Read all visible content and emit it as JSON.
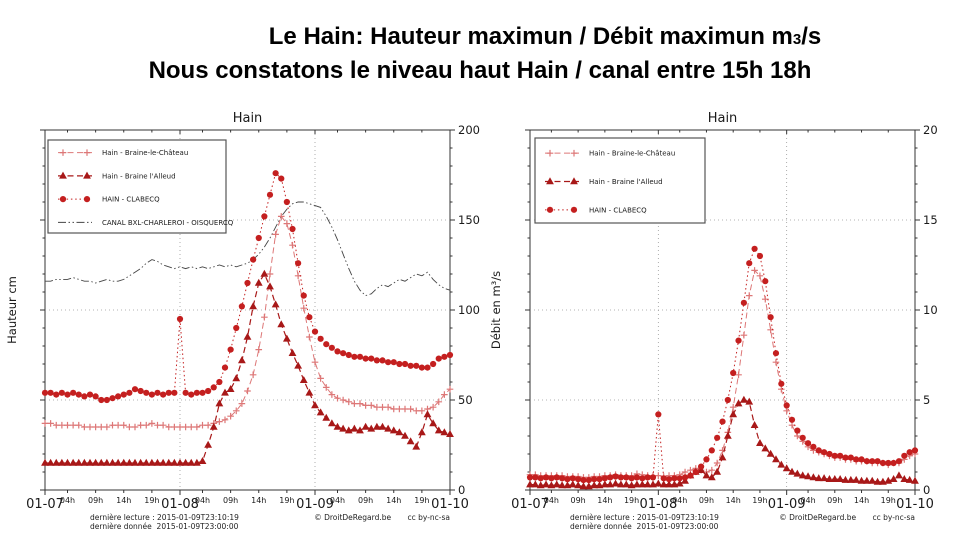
{
  "title": {
    "line1_main": "Le Hain: Hauteur maximun  / Débit maximun m",
    "line1_sub": "3",
    "line1_tail": "/s",
    "line2": "Nous constatons le niveau haut Hain / canal entre 15h 18h"
  },
  "footers": {
    "reading_line": "dernière lecture : 2015-01-09T23:10:19",
    "data_line": "dernière donnée  2015-01-09T23:00:00",
    "copyright": "© DroitDeRegard.be",
    "license": "cc by-nc-sa"
  },
  "chart_data": [
    {
      "type": "line",
      "title": "Hain",
      "ylabel": "Hauteur cm",
      "ylim": [
        0,
        200
      ],
      "yticks": [
        0,
        50,
        100,
        150,
        200
      ],
      "ytick_minor_step": 10,
      "grid_y": [
        50,
        100,
        150
      ],
      "grid_x_hours": [
        24,
        48
      ],
      "x_total_hours": 72,
      "xticks_major": [
        {
          "h": 0,
          "label": "01-07"
        },
        {
          "h": 24,
          "label": "01-08"
        },
        {
          "h": 48,
          "label": "01-09"
        },
        {
          "h": 72,
          "label": "01-10"
        }
      ],
      "xticks_minor": [
        {
          "h": 4,
          "label": "04h"
        },
        {
          "h": 9,
          "label": "09h"
        },
        {
          "h": 14,
          "label": "14h"
        },
        {
          "h": 19,
          "label": "19h"
        },
        {
          "h": 28,
          "label": "04h"
        },
        {
          "h": 33,
          "label": "09h"
        },
        {
          "h": 38,
          "label": "14h"
        },
        {
          "h": 43,
          "label": "19h"
        },
        {
          "h": 52,
          "label": "04h"
        },
        {
          "h": 57,
          "label": "09h"
        },
        {
          "h": 62,
          "label": "14h"
        },
        {
          "h": 67,
          "label": "19h"
        }
      ],
      "legend_position": "upper-left",
      "series": [
        {
          "id": "braine-le-chateau",
          "name": "Hain - Braine-le-Château",
          "marker": "plus",
          "color": "#dd7777",
          "dash": "6,3.5",
          "width": 1,
          "z": 1,
          "values": [
            37,
            37,
            36,
            36,
            36,
            36,
            36,
            35,
            35,
            35,
            35,
            35,
            36,
            36,
            36,
            35,
            35,
            36,
            36,
            37,
            36,
            36,
            35,
            35,
            35,
            35,
            35,
            35,
            36,
            36,
            37,
            38,
            39,
            41,
            44,
            48,
            55,
            64,
            78,
            96,
            120,
            142,
            152,
            148,
            136,
            119,
            101,
            85,
            71,
            62,
            57,
            53,
            51,
            50,
            49,
            48,
            48,
            47,
            47,
            46,
            46,
            46,
            45,
            45,
            45,
            45,
            44,
            44,
            45,
            46,
            49,
            53,
            56
          ]
        },
        {
          "id": "braine-l-alleud",
          "name": "Hain - Braine l'Alleud",
          "marker": "triangle",
          "color": "#a81818",
          "dash": "6,3.5",
          "width": 1.2,
          "z": 2,
          "values": [
            15,
            15,
            15,
            15,
            15,
            15,
            15,
            15,
            15,
            15,
            15,
            15,
            15,
            15,
            15,
            15,
            15,
            15,
            15,
            15,
            15,
            15,
            15,
            15,
            15,
            15,
            15,
            15,
            16,
            25,
            35,
            48,
            54,
            56,
            62,
            72,
            85,
            102,
            115,
            120,
            113,
            103,
            92,
            84,
            76,
            69,
            61,
            54,
            47,
            43,
            40,
            37,
            35,
            34,
            33,
            34,
            33,
            35,
            34,
            35,
            35,
            34,
            33,
            32,
            30,
            27,
            24,
            32,
            42,
            37,
            33,
            32,
            31
          ]
        },
        {
          "id": "hain-clabecq",
          "name": "HAIN - CLABECQ",
          "marker": "circle",
          "color": "#c41f1f",
          "dash": "1.5,2.8",
          "width": 1,
          "z": 3,
          "values": [
            54,
            54,
            53,
            54,
            53,
            54,
            53,
            52,
            53,
            52,
            50,
            50,
            51,
            52,
            53,
            54,
            56,
            55,
            54,
            53,
            54,
            53,
            54,
            54,
            95,
            54,
            53,
            54,
            54,
            55,
            57,
            60,
            68,
            78,
            90,
            102,
            115,
            128,
            140,
            152,
            164,
            176,
            173,
            160,
            145,
            126,
            108,
            96,
            88,
            84,
            81,
            79,
            77,
            76,
            75,
            74,
            74,
            73,
            73,
            72,
            72,
            71,
            71,
            70,
            70,
            69,
            69,
            68,
            68,
            70,
            73,
            74,
            75
          ]
        },
        {
          "id": "canal-bxl-charleroi",
          "name": "CANAL BXL-CHARLEROI - OISQUERCQ",
          "marker": "none",
          "color": "#444444",
          "dash": "8,2.5,1.5,2.5,1.5,2.5",
          "width": 0.9,
          "z": 0,
          "values": [
            116,
            116,
            117,
            117,
            117,
            118,
            117,
            116,
            116,
            115,
            116,
            117,
            116,
            116,
            117,
            119,
            121,
            123,
            126,
            128,
            127,
            125,
            124,
            123,
            124,
            123,
            124,
            123,
            124,
            123,
            124,
            125,
            124,
            125,
            124,
            125,
            126,
            128,
            131,
            135,
            140,
            146,
            152,
            156,
            159,
            160,
            160,
            159,
            158,
            157,
            152,
            146,
            139,
            131,
            123,
            116,
            111,
            108,
            109,
            112,
            114,
            113,
            115,
            117,
            116,
            118,
            120,
            119,
            121,
            117,
            114,
            112,
            111
          ]
        }
      ]
    },
    {
      "type": "line",
      "title": "Hain",
      "ylabel": "Débit en m³/s",
      "ylim": [
        0,
        20
      ],
      "yticks": [
        0,
        5,
        10,
        15,
        20
      ],
      "ytick_minor_step": 1,
      "grid_y": [
        5,
        10,
        15
      ],
      "grid_x_hours": [
        24,
        48
      ],
      "x_total_hours": 72,
      "xticks_major": [
        {
          "h": 0,
          "label": "01-07"
        },
        {
          "h": 24,
          "label": "01-08"
        },
        {
          "h": 48,
          "label": "01-09"
        },
        {
          "h": 72,
          "label": "01-10"
        }
      ],
      "xticks_minor": [
        {
          "h": 4,
          "label": "04h"
        },
        {
          "h": 9,
          "label": "09h"
        },
        {
          "h": 14,
          "label": "14h"
        },
        {
          "h": 19,
          "label": "19h"
        },
        {
          "h": 28,
          "label": "04h"
        },
        {
          "h": 33,
          "label": "09h"
        },
        {
          "h": 38,
          "label": "14h"
        },
        {
          "h": 43,
          "label": "19h"
        },
        {
          "h": 52,
          "label": "04h"
        },
        {
          "h": 57,
          "label": "09h"
        },
        {
          "h": 62,
          "label": "14h"
        },
        {
          "h": 67,
          "label": "19h"
        }
      ],
      "legend_position": "upper-left",
      "series": [
        {
          "id": "braine-le-chateau",
          "name": "Hain - Braine-le-Château",
          "marker": "plus",
          "color": "#dd7777",
          "dash": "6,3.5",
          "width": 1,
          "z": 1,
          "values": [
            0.85,
            0.85,
            0.8,
            0.8,
            0.8,
            0.8,
            0.8,
            0.75,
            0.75,
            0.75,
            0.7,
            0.7,
            0.75,
            0.75,
            0.8,
            0.8,
            0.85,
            0.8,
            0.8,
            0.8,
            0.9,
            0.85,
            0.8,
            0.8,
            0.8,
            0.75,
            0.8,
            0.8,
            0.85,
            1.0,
            1.1,
            1.2,
            1.1,
            1.0,
            1.1,
            1.5,
            2.2,
            3.2,
            4.6,
            6.4,
            8.6,
            10.8,
            12.2,
            11.9,
            10.6,
            8.9,
            7.1,
            5.6,
            4.4,
            3.6,
            3.0,
            2.7,
            2.4,
            2.2,
            2.1,
            2.0,
            1.9,
            1.8,
            1.8,
            1.7,
            1.7,
            1.6,
            1.6,
            1.6,
            1.5,
            1.5,
            1.5,
            1.4,
            1.5,
            1.5,
            1.7,
            1.9,
            2.0
          ]
        },
        {
          "id": "braine-l-alleud",
          "name": "Hain - Braine l'Alleud",
          "marker": "triangle",
          "color": "#a81818",
          "dash": "6,3.5",
          "width": 1.2,
          "z": 2,
          "values": [
            0.3,
            0.3,
            0.25,
            0.3,
            0.25,
            0.3,
            0.25,
            0.25,
            0.3,
            0.25,
            0.2,
            0.2,
            0.25,
            0.25,
            0.3,
            0.3,
            0.35,
            0.3,
            0.3,
            0.25,
            0.3,
            0.3,
            0.3,
            0.3,
            0.35,
            0.3,
            0.3,
            0.3,
            0.35,
            0.5,
            0.8,
            1.0,
            1.1,
            0.8,
            0.7,
            1.0,
            1.8,
            3.0,
            4.2,
            4.8,
            5.0,
            4.9,
            3.6,
            2.6,
            2.3,
            2.0,
            1.7,
            1.4,
            1.2,
            1.0,
            0.9,
            0.8,
            0.75,
            0.7,
            0.65,
            0.65,
            0.6,
            0.6,
            0.6,
            0.55,
            0.55,
            0.55,
            0.5,
            0.5,
            0.5,
            0.45,
            0.45,
            0.5,
            0.6,
            0.8,
            0.6,
            0.55,
            0.5
          ]
        },
        {
          "id": "hain-clabecq",
          "name": "HAIN - CLABECQ",
          "marker": "circle",
          "color": "#c41f1f",
          "dash": "1.5,2.8",
          "width": 1,
          "z": 3,
          "values": [
            0.7,
            0.7,
            0.65,
            0.7,
            0.65,
            0.7,
            0.65,
            0.6,
            0.65,
            0.6,
            0.55,
            0.55,
            0.6,
            0.6,
            0.65,
            0.7,
            0.75,
            0.7,
            0.7,
            0.65,
            0.7,
            0.65,
            0.7,
            0.7,
            4.2,
            0.65,
            0.6,
            0.65,
            0.65,
            0.7,
            0.8,
            1.0,
            1.3,
            1.7,
            2.2,
            2.9,
            3.8,
            5.0,
            6.5,
            8.3,
            10.4,
            12.6,
            13.4,
            13.0,
            11.6,
            9.6,
            7.6,
            5.9,
            4.7,
            3.9,
            3.3,
            2.9,
            2.6,
            2.4,
            2.2,
            2.1,
            2.0,
            1.9,
            1.9,
            1.8,
            1.8,
            1.7,
            1.7,
            1.6,
            1.6,
            1.6,
            1.5,
            1.5,
            1.5,
            1.6,
            1.9,
            2.1,
            2.2
          ]
        }
      ]
    }
  ]
}
